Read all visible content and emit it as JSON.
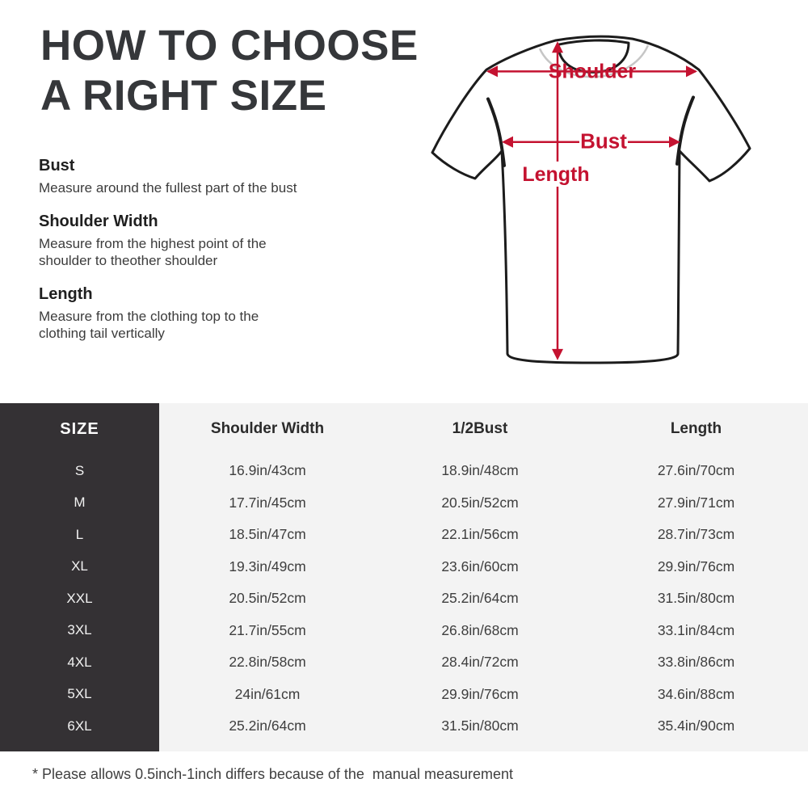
{
  "page": {
    "title_line1": "HOW TO CHOOSE",
    "title_line2": "A RIGHT SIZE",
    "footnote": "* Please allows 0.5inch-1inch differs because of the  manual measurement"
  },
  "instructions": [
    {
      "heading": "Bust",
      "text": "Measure around the fullest part of the bust"
    },
    {
      "heading": "Shoulder Width",
      "text": "Measure from the highest point of the\nshoulder to theother shoulder"
    },
    {
      "heading": "Length",
      "text": "Measure from the clothing top to the\nclothing tail vertically"
    }
  ],
  "diagram": {
    "labels": {
      "shoulder": "Shoulder",
      "bust": "Bust",
      "length": "Length"
    },
    "arrow_color": "#c41230",
    "outline_color": "#1c1c1c"
  },
  "size_chart": {
    "type": "table",
    "columns": [
      "SIZE",
      "Shoulder Width",
      "1/2Bust",
      "Length"
    ],
    "rows": [
      [
        "S",
        "16.9in/43cm",
        "18.9in/48cm",
        "27.6in/70cm"
      ],
      [
        "M",
        "17.7in/45cm",
        "20.5in/52cm",
        "27.9in/71cm"
      ],
      [
        "L",
        "18.5in/47cm",
        "22.1in/56cm",
        "28.7in/73cm"
      ],
      [
        "XL",
        "19.3in/49cm",
        "23.6in/60cm",
        "29.9in/76cm"
      ],
      [
        "XXL",
        "20.5in/52cm",
        "25.2in/64cm",
        "31.5in/80cm"
      ],
      [
        "3XL",
        "21.7in/55cm",
        "26.8in/68cm",
        "33.1in/84cm"
      ],
      [
        "4XL",
        "22.8in/58cm",
        "28.4in/72cm",
        "33.8in/86cm"
      ],
      [
        "5XL",
        "24in/61cm",
        "29.9in/76cm",
        "34.6in/88cm"
      ],
      [
        "6XL",
        "25.2in/64cm",
        "31.5in/80cm",
        "35.4in/90cm"
      ]
    ]
  },
  "colors": {
    "accent_red": "#c41230",
    "panel_dark": "#343134",
    "table_bg": "#f3f3f3",
    "title_text": "#35373a"
  }
}
